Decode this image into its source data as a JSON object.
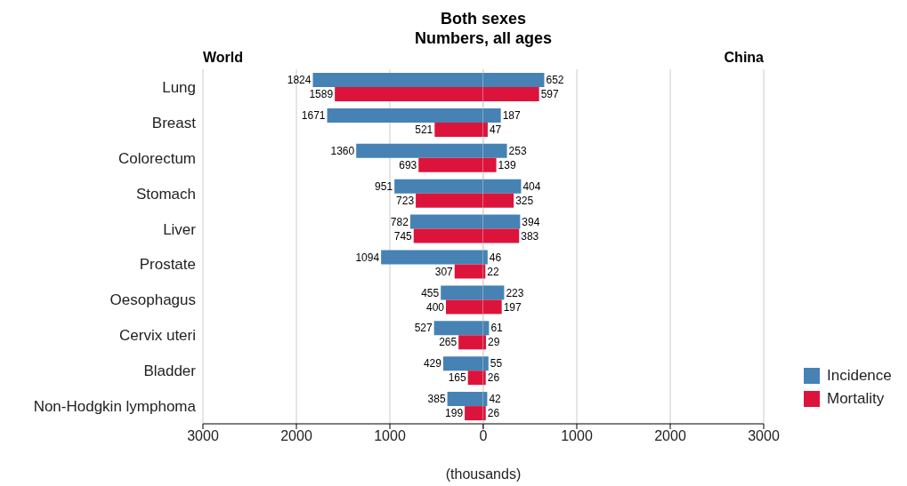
{
  "chart_data": [
    {
      "type": "bar",
      "orientation": "horizontal",
      "title": "Both sexes",
      "subtitle": "Numbers, all ages",
      "xlabel": "(thousands)",
      "annotations": [
        "World"
      ],
      "categories": [
        "Lung",
        "Breast",
        "Colorectum",
        "Stomach",
        "Liver",
        "Prostate",
        "Oesophagus",
        "Cervix uteri",
        "Bladder",
        "Non-Hodgkin lymphoma"
      ],
      "series": [
        {
          "color": "#4682b4",
          "values": [
            1824,
            1671,
            1360,
            951,
            782,
            1094,
            455,
            527,
            429,
            385
          ]
        },
        {
          "color": "#dc143c",
          "values": [
            1589,
            521,
            693,
            723,
            745,
            307,
            400,
            265,
            165,
            199
          ]
        }
      ],
      "xlim": [
        3000,
        0
      ],
      "xticks": [
        3000,
        2000,
        1000,
        {
          "value": 0,
          "label": null
        }
      ],
      "grid": "x",
      "data_labels": true
    },
    {
      "type": "bar",
      "orientation": "horizontal",
      "annotations": [
        "China"
      ],
      "series": [
        {
          "name": "Incidence",
          "color": "#4682b4",
          "values": [
            652,
            187,
            253,
            404,
            394,
            46,
            223,
            61,
            55,
            42
          ]
        },
        {
          "name": "Mortality",
          "color": "#dc143c",
          "values": [
            597,
            47,
            139,
            325,
            383,
            22,
            197,
            29,
            26,
            26
          ]
        }
      ],
      "xlim": [
        0,
        3000
      ],
      "xticks": [
        0,
        1000,
        2000,
        3000
      ],
      "tick_labels": "x",
      "grid": "x",
      "legend": "right",
      "data_labels": true
    }
  ]
}
